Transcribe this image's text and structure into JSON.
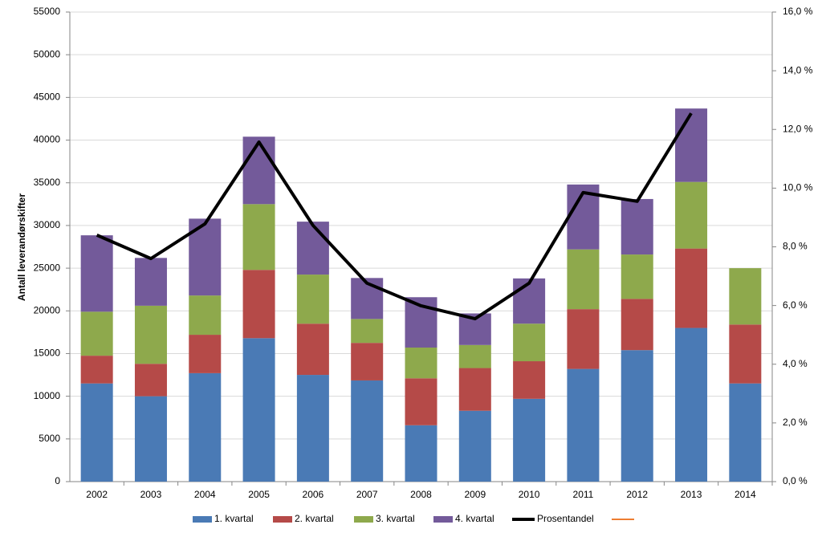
{
  "chart_data": {
    "type": "bar",
    "stacked": true,
    "y_label": "Antall leverandørskifter",
    "categories": [
      "2002",
      "2003",
      "2004",
      "2005",
      "2006",
      "2007",
      "2008",
      "2009",
      "2010",
      "2011",
      "2012",
      "2013",
      "2014"
    ],
    "series": [
      {
        "name": "1. kvartal",
        "color": "#4a7ab5",
        "values": [
          11500,
          10000,
          12700,
          16800,
          12500,
          11850,
          6600,
          8300,
          9700,
          13200,
          15400,
          18000,
          11500
        ]
      },
      {
        "name": "2. kvartal",
        "color": "#b54a48",
        "values": [
          3250,
          3800,
          4500,
          8000,
          6000,
          4400,
          5500,
          5000,
          4400,
          7000,
          6000,
          9300,
          6900
        ]
      },
      {
        "name": "3. kvartal",
        "color": "#8ea94c",
        "values": [
          5150,
          6800,
          4600,
          7700,
          5750,
          2800,
          3600,
          2700,
          4400,
          7000,
          5200,
          7800,
          6600
        ]
      },
      {
        "name": "4. kvartal",
        "color": "#735a9a",
        "values": [
          8950,
          5600,
          9000,
          7900,
          6200,
          4800,
          5900,
          3700,
          5300,
          7600,
          6500,
          8600,
          null
        ]
      },
      {
        "name": "Prosentandel",
        "type": "line",
        "axis": "y2",
        "color": "#000000",
        "values": [
          8.4,
          7.6,
          8.78,
          11.57,
          8.73,
          6.76,
          5.99,
          5.55,
          6.76,
          9.85,
          9.55,
          12.55,
          null
        ]
      }
    ],
    "ylim": [
      0,
      55000
    ],
    "yticks": [
      0,
      5000,
      10000,
      15000,
      20000,
      25000,
      30000,
      35000,
      40000,
      45000,
      50000,
      55000
    ],
    "y2lim": [
      0,
      16
    ],
    "y2ticks": [
      {
        "value": 0,
        "label": "0,0 %"
      },
      {
        "value": 2,
        "label": "2,0 %"
      },
      {
        "value": 4,
        "label": "4,0 %"
      },
      {
        "value": 6,
        "label": "6,0 %"
      },
      {
        "value": 8,
        "label": "8,0 %"
      },
      {
        "value": 10,
        "label": "10,0 %"
      },
      {
        "value": 12,
        "label": "12,0 %"
      },
      {
        "value": 14,
        "label": "14,0 %"
      },
      {
        "value": 16,
        "label": "16,0 %"
      }
    ],
    "grid": true,
    "legend": "bottom"
  }
}
